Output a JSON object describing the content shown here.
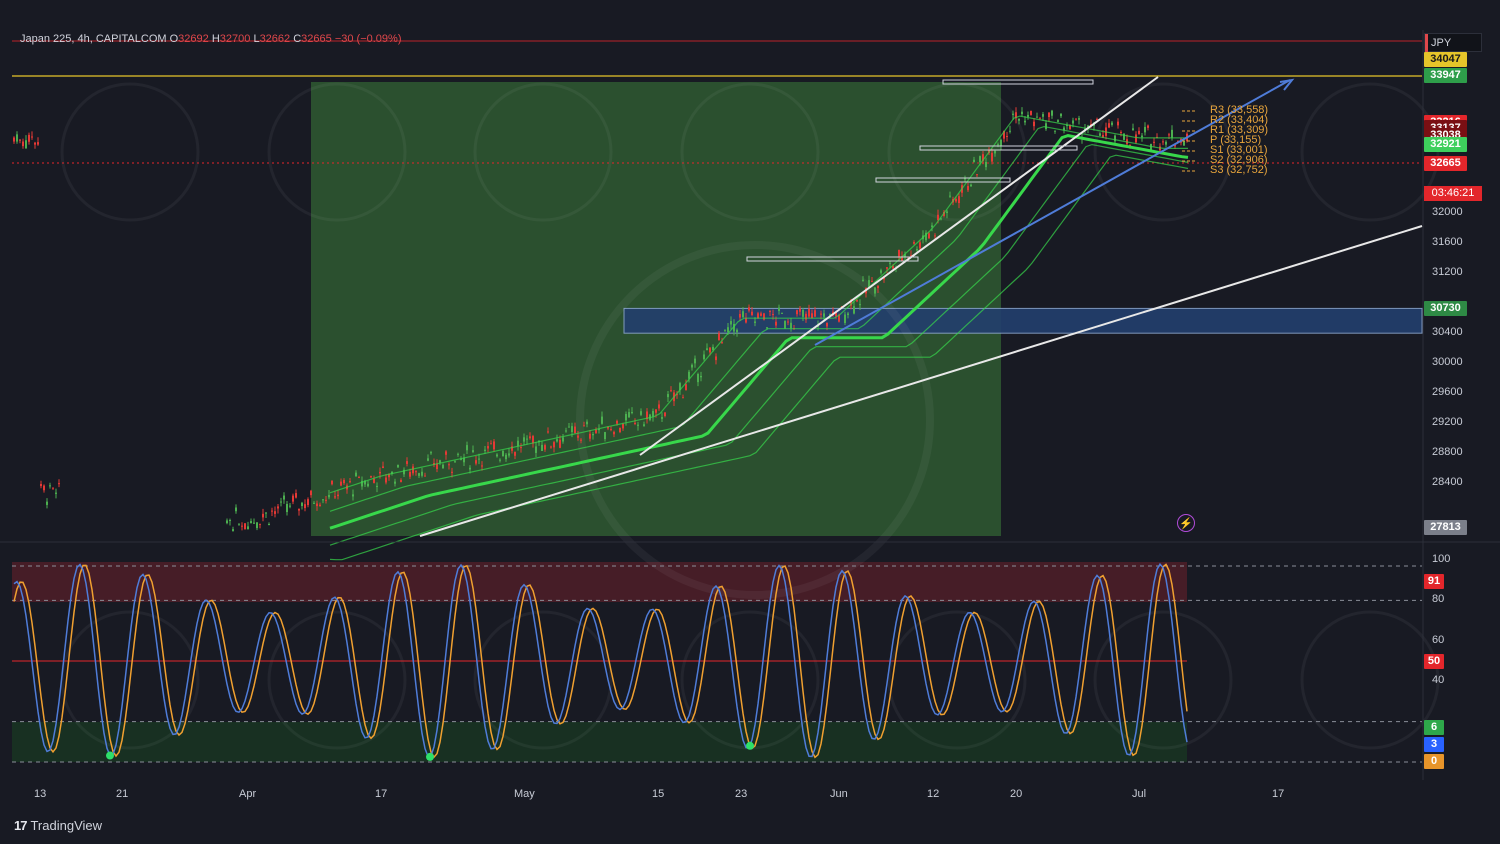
{
  "header": {
    "symbol": "Japan 225, 4h, CAPITALCOM",
    "open_label": "O",
    "open": "32692",
    "high_label": "H",
    "high": "32700",
    "low_label": "L",
    "low": "32662",
    "close_label": "C",
    "close": "32665",
    "change": "−30 (−0.09%)"
  },
  "currency": "JPY",
  "countdown": "03:46:21",
  "brand": "TradingView",
  "price_tags": [
    {
      "text": "34047",
      "color": "#e6c52a",
      "fg": "#1a1a1a"
    },
    {
      "text": "33947",
      "color": "#2e9e4a",
      "fg": "#ffffff"
    },
    {
      "text": "33216",
      "color": "#e3262b",
      "fg": "#ffffff"
    },
    {
      "text": "33149",
      "color": "#7a0f13",
      "fg": "#ffffff"
    },
    {
      "text": "33137",
      "color": "#7a0f13",
      "fg": "#ffffff"
    },
    {
      "text": "33038",
      "color": "#7a0f13",
      "fg": "#ffffff"
    },
    {
      "text": "32921",
      "color": "#3ecf5c",
      "fg": "#ffffff"
    },
    {
      "text": "32665",
      "color": "#e3262b",
      "fg": "#ffffff"
    },
    {
      "text": "30730",
      "color": "#2e8a45",
      "fg": "#ffffff"
    },
    {
      "text": "27813",
      "color": "#7b7f8a",
      "fg": "#ffffff"
    }
  ],
  "pivots": [
    {
      "text": "R3 (33,558)"
    },
    {
      "text": "R2 (33,404)"
    },
    {
      "text": "R1 (33,309)"
    },
    {
      "text": "P (33,155)"
    },
    {
      "text": "S1 (33,001)"
    },
    {
      "text": "S2 (32,906)"
    },
    {
      "text": "S3 (32,752)"
    }
  ],
  "osc_tags": [
    {
      "text": "91",
      "color": "#e3262b"
    },
    {
      "text": "50",
      "color": "#e3262b"
    },
    {
      "text": "6",
      "color": "#2ea84a"
    },
    {
      "text": "3",
      "color": "#2962ff"
    },
    {
      "text": "0",
      "color": "#e8952a"
    }
  ],
  "colors": {
    "background": "#181a23",
    "up": "#4caf50",
    "down": "#e53935",
    "zone_green": "#2f5a31",
    "zone_blue": "#233f6e",
    "ema": "#38d84b",
    "stoch_k": "#4f7cd8",
    "stoch_d": "#f0a030"
  },
  "chart_data": [
    {
      "type": "line",
      "name": "Japan 225, 4h, CAPITALCOM",
      "y_ticks": [
        32000,
        31600,
        31200,
        30400,
        30000,
        29600,
        29200,
        28800,
        28400
      ],
      "ylim": [
        27813,
        34200
      ],
      "x_ticks": [
        "13",
        "21",
        "Apr",
        "17",
        "May",
        "15",
        "23",
        "Jun",
        "12",
        "20",
        "Jul",
        "17"
      ],
      "x": [
        "13",
        "21",
        "Apr",
        "17",
        "May",
        "15",
        "23",
        "Jun",
        "12",
        "20",
        "Jul"
      ],
      "series": [
        {
          "values": [
            28300,
            28000,
            27900,
            28500,
            28900,
            29300,
            30600,
            30600,
            31800,
            33300,
            33000
          ]
        }
      ],
      "last_price": 32665,
      "zones": [
        {
          "kind": "support",
          "from": 30400,
          "to": 30730
        }
      ],
      "scale": "linear",
      "grid": false
    },
    {
      "type": "line",
      "name": "Stochastic RSI",
      "y_ticks": [
        100,
        80,
        60,
        40
      ],
      "ylim": [
        0,
        100
      ],
      "levels": [
        80,
        50,
        20
      ],
      "x": [
        "13",
        "21",
        "Apr",
        "17",
        "May",
        "15",
        "23",
        "Jun",
        "12",
        "20",
        "Jul"
      ],
      "series": [
        {
          "values": [
            10,
            95,
            5,
            98,
            15,
            97,
            5,
            96,
            8,
            97,
            6
          ]
        }
      ],
      "last_values": [
        6,
        3
      ]
    }
  ]
}
